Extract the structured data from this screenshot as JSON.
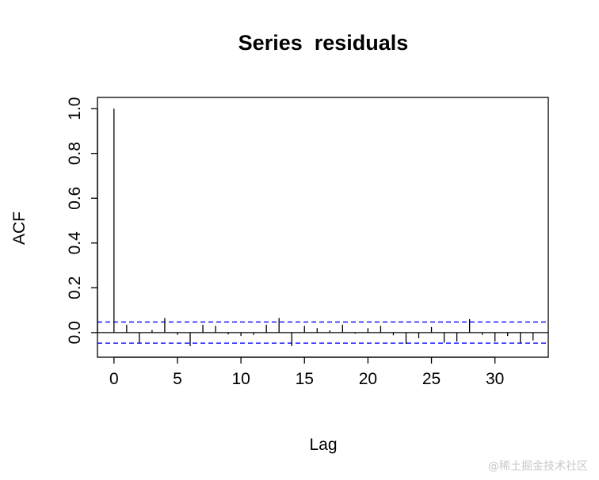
{
  "chart_data": {
    "type": "bar",
    "title": "Series  residuals",
    "xlabel": "Lag",
    "ylabel": "ACF",
    "xlim": [
      -1.3,
      34.2
    ],
    "ylim": [
      -0.11,
      1.05
    ],
    "x_ticks": [
      0,
      5,
      10,
      15,
      20,
      25,
      30
    ],
    "y_ticks": [
      0.0,
      0.2,
      0.4,
      0.6,
      0.8,
      1.0
    ],
    "y_tick_labels": [
      "0.0",
      "0.2",
      "0.4",
      "0.6",
      "0.8",
      "1.0"
    ],
    "confidence_bounds": [
      0.047,
      -0.047
    ],
    "bound_color": "#0000ff",
    "series": [
      {
        "lags": [
          0,
          1,
          2,
          3,
          4,
          5,
          6,
          7,
          8,
          9,
          10,
          11,
          12,
          13,
          14,
          15,
          16,
          17,
          18,
          19,
          20,
          21,
          22,
          23,
          24,
          25,
          26,
          27,
          28,
          29,
          30,
          31,
          32,
          33
        ],
        "values": [
          1.0,
          0.035,
          -0.045,
          0.012,
          0.065,
          -0.01,
          -0.06,
          0.035,
          0.03,
          -0.008,
          -0.015,
          -0.01,
          0.035,
          0.065,
          -0.06,
          0.03,
          0.02,
          0.01,
          0.035,
          -0.005,
          0.02,
          0.03,
          -0.012,
          -0.05,
          -0.025,
          0.025,
          -0.045,
          -0.04,
          0.06,
          -0.01,
          -0.04,
          -0.015,
          -0.045,
          -0.035
        ]
      }
    ],
    "grid": false
  },
  "watermark": "@稀土掘金技术社区"
}
